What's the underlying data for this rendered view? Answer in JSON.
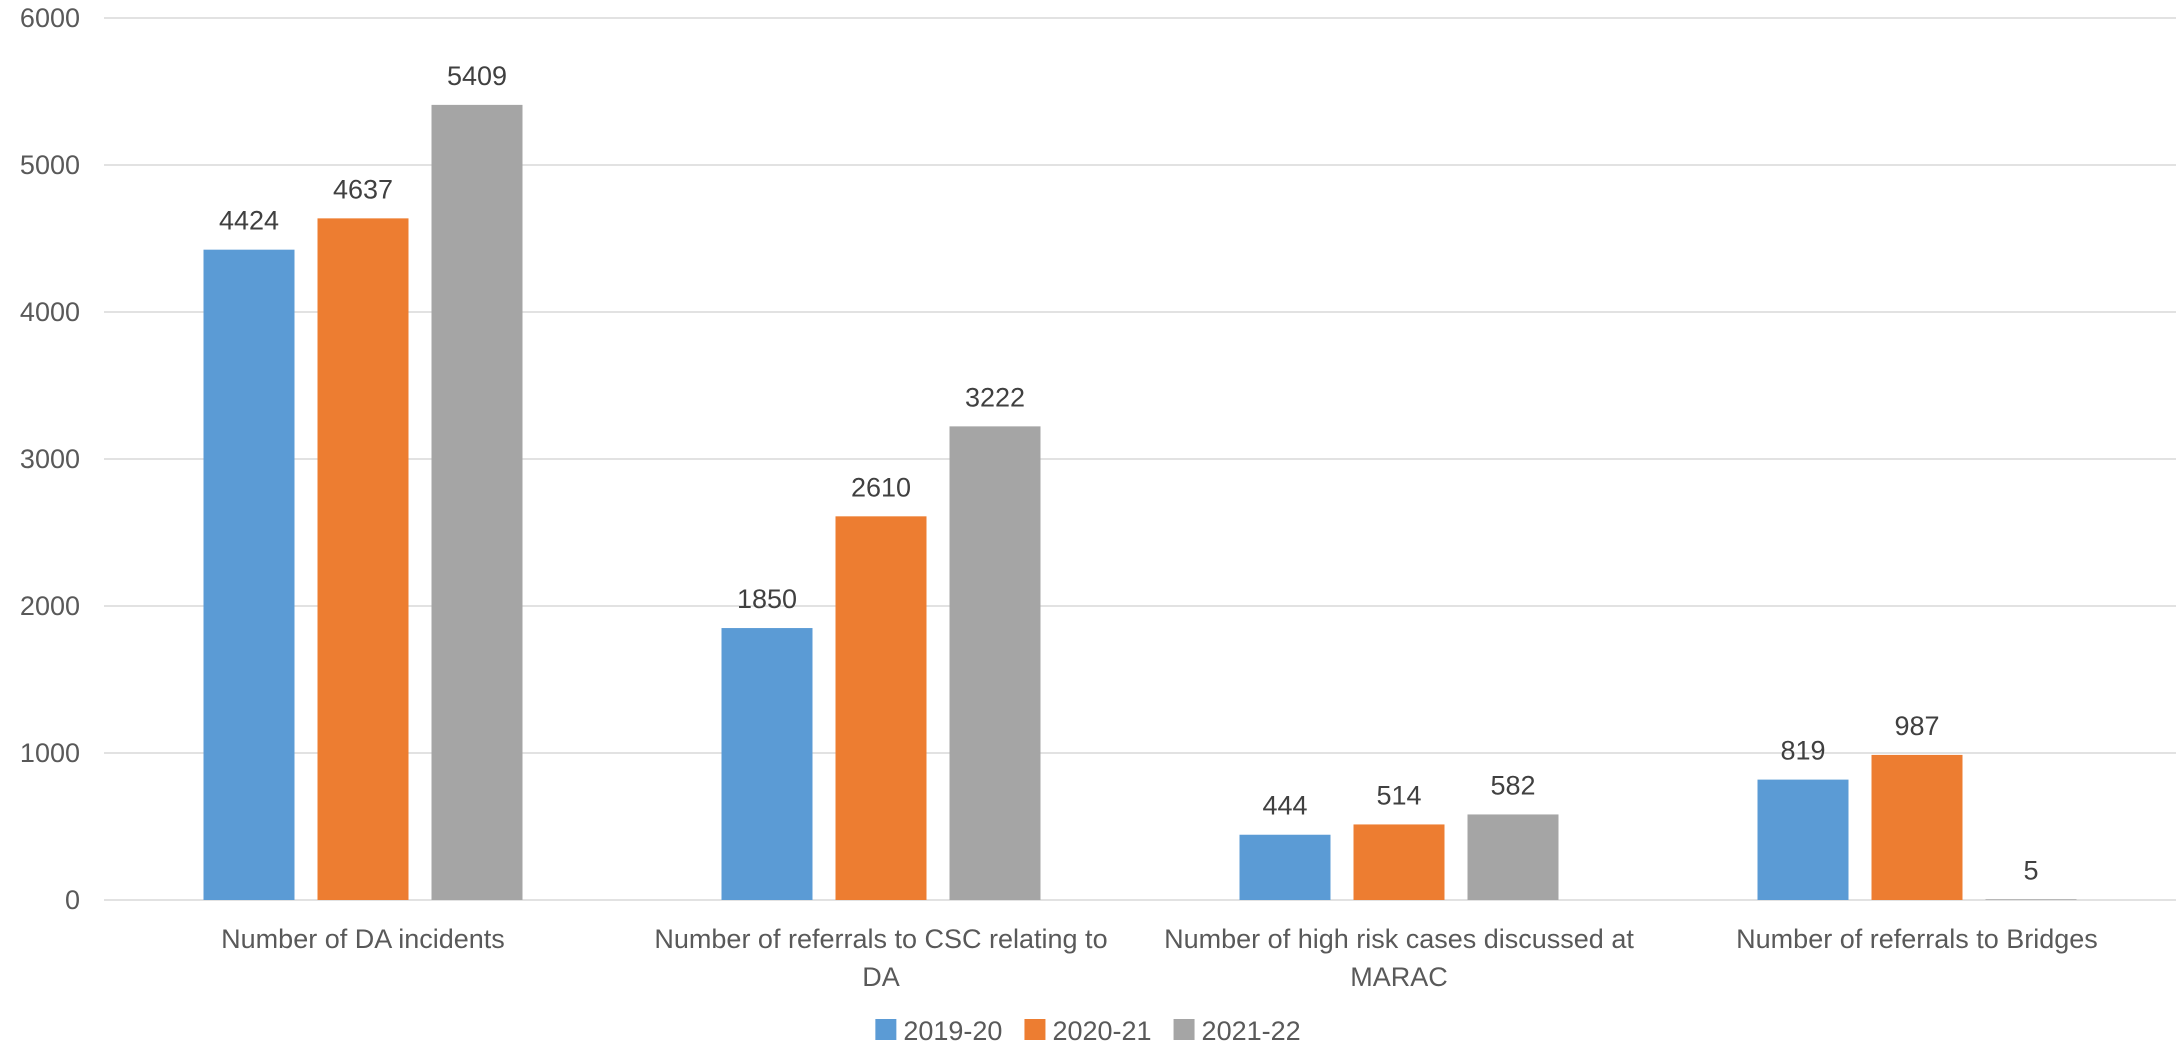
{
  "chart_data": {
    "type": "bar",
    "title": "",
    "xlabel": "",
    "ylabel": "",
    "ylim": [
      0,
      6000
    ],
    "yticks": [
      0,
      1000,
      2000,
      3000,
      4000,
      5000,
      6000
    ],
    "grid": true,
    "legend_position": "bottom",
    "categories": [
      [
        "Number of DA incidents"
      ],
      [
        "Number of referrals to CSC relating to",
        "DA"
      ],
      [
        "Number of high risk cases discussed at",
        "MARAC"
      ],
      [
        "Number of referrals to Bridges"
      ]
    ],
    "series": [
      {
        "name": "2019-20",
        "color": "#5b9bd5",
        "values": [
          4424,
          1850,
          444,
          819
        ]
      },
      {
        "name": "2020-21",
        "color": "#ed7d31",
        "values": [
          4637,
          2610,
          514,
          987
        ]
      },
      {
        "name": "2021-22",
        "color": "#a5a5a5",
        "values": [
          5409,
          3222,
          582,
          5
        ]
      }
    ]
  }
}
